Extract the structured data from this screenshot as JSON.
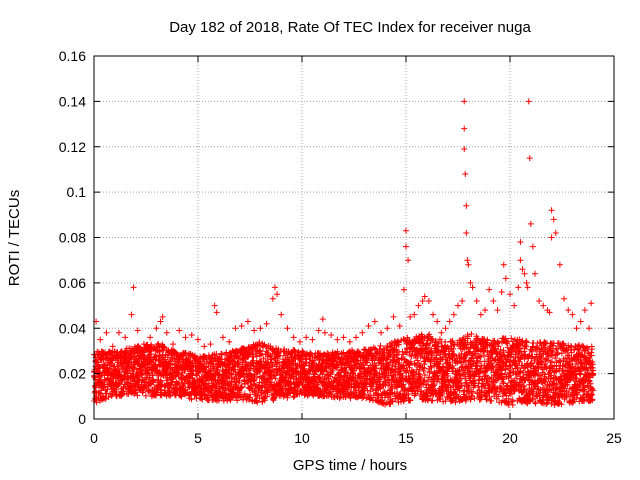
{
  "chart_data": {
    "type": "scatter",
    "title": "Day 182 of 2018, Rate Of TEC Index for receiver nuga",
    "xlabel": "GPS time / hours",
    "ylabel": "ROTI / TECUs",
    "xlim": [
      0,
      25
    ],
    "ylim": [
      0,
      0.16
    ],
    "xticks": [
      0,
      5,
      10,
      15,
      20,
      25
    ],
    "xtick_labels": [
      "0",
      "5",
      "10",
      "15",
      "20",
      "25"
    ],
    "yticks": [
      0,
      0.02,
      0.04,
      0.06,
      0.08,
      0.1,
      0.12,
      0.14,
      0.16
    ],
    "ytick_labels": [
      "0",
      "0.02",
      "0.04",
      "0.06",
      "0.08",
      "0.1",
      "0.12",
      "0.14",
      "0.16"
    ],
    "grid": true,
    "marker": "+",
    "color": "#ff0000",
    "series": [
      {
        "name": "ROTI",
        "x": [
          0.1,
          0.3,
          0.6,
          0.9,
          1.2,
          1.5,
          1.8,
          1.9,
          2.1,
          2.4,
          2.7,
          3.0,
          3.2,
          3.3,
          3.5,
          3.8,
          4.1,
          4.4,
          4.7,
          5.0,
          5.3,
          5.6,
          5.8,
          5.9,
          6.2,
          6.5,
          6.8,
          7.1,
          7.4,
          7.7,
          8.0,
          8.3,
          8.6,
          8.7,
          8.8,
          9.0,
          9.3,
          9.6,
          9.9,
          10.2,
          10.5,
          10.8,
          11.0,
          11.1,
          11.4,
          11.7,
          12.0,
          12.3,
          12.6,
          12.9,
          13.2,
          13.5,
          13.8,
          14.1,
          14.4,
          14.7,
          14.9,
          15.0,
          15.0,
          15.1,
          15.2,
          15.4,
          15.6,
          15.8,
          15.9,
          16.1,
          16.3,
          16.5,
          16.7,
          16.9,
          17.1,
          17.3,
          17.5,
          17.7,
          17.8,
          17.8,
          17.8,
          17.85,
          17.9,
          17.9,
          17.95,
          18.0,
          18.1,
          18.2,
          18.4,
          18.6,
          18.8,
          19.0,
          19.2,
          19.4,
          19.6,
          19.7,
          19.8,
          20.0,
          20.2,
          20.4,
          20.5,
          20.5,
          20.6,
          20.7,
          20.8,
          20.85,
          20.9,
          20.95,
          21.0,
          21.1,
          21.2,
          21.4,
          21.6,
          21.8,
          21.9,
          22.0,
          22.0,
          22.1,
          22.2,
          22.4,
          22.6,
          22.8,
          23.0,
          23.2,
          23.4,
          23.6,
          23.8,
          23.9
        ],
        "y": [
          0.043,
          0.035,
          0.038,
          0.032,
          0.038,
          0.036,
          0.046,
          0.058,
          0.039,
          0.033,
          0.036,
          0.04,
          0.043,
          0.045,
          0.038,
          0.033,
          0.039,
          0.036,
          0.037,
          0.035,
          0.032,
          0.033,
          0.05,
          0.047,
          0.036,
          0.034,
          0.04,
          0.041,
          0.043,
          0.039,
          0.04,
          0.042,
          0.053,
          0.058,
          0.055,
          0.046,
          0.04,
          0.036,
          0.034,
          0.036,
          0.035,
          0.039,
          0.044,
          0.038,
          0.037,
          0.035,
          0.036,
          0.034,
          0.036,
          0.038,
          0.041,
          0.043,
          0.038,
          0.04,
          0.045,
          0.041,
          0.057,
          0.083,
          0.076,
          0.07,
          0.045,
          0.046,
          0.05,
          0.052,
          0.054,
          0.052,
          0.046,
          0.043,
          0.038,
          0.04,
          0.043,
          0.046,
          0.05,
          0.052,
          0.14,
          0.128,
          0.119,
          0.108,
          0.094,
          0.082,
          0.07,
          0.068,
          0.06,
          0.058,
          0.052,
          0.046,
          0.048,
          0.057,
          0.052,
          0.048,
          0.056,
          0.068,
          0.062,
          0.055,
          0.05,
          0.058,
          0.078,
          0.07,
          0.066,
          0.064,
          0.06,
          0.058,
          0.14,
          0.115,
          0.086,
          0.076,
          0.064,
          0.052,
          0.05,
          0.048,
          0.047,
          0.08,
          0.092,
          0.088,
          0.082,
          0.068,
          0.053,
          0.048,
          0.046,
          0.04,
          0.043,
          0.048,
          0.04,
          0.051
        ]
      }
    ],
    "band_envelope": {
      "x": [
        0,
        1,
        2,
        3,
        4,
        5,
        6,
        7,
        8,
        9,
        10,
        11,
        12,
        13,
        14,
        15,
        16,
        17,
        18,
        19,
        20,
        21,
        22,
        23,
        24
      ],
      "y_low": [
        0.007,
        0.01,
        0.01,
        0.01,
        0.01,
        0.008,
        0.008,
        0.008,
        0.007,
        0.009,
        0.01,
        0.01,
        0.009,
        0.009,
        0.006,
        0.008,
        0.008,
        0.007,
        0.008,
        0.008,
        0.006,
        0.007,
        0.006,
        0.007,
        0.008
      ],
      "y_high": [
        0.03,
        0.03,
        0.032,
        0.034,
        0.03,
        0.028,
        0.029,
        0.031,
        0.034,
        0.031,
        0.03,
        0.029,
        0.03,
        0.031,
        0.033,
        0.036,
        0.038,
        0.034,
        0.038,
        0.035,
        0.036,
        0.034,
        0.034,
        0.033,
        0.032
      ]
    }
  }
}
